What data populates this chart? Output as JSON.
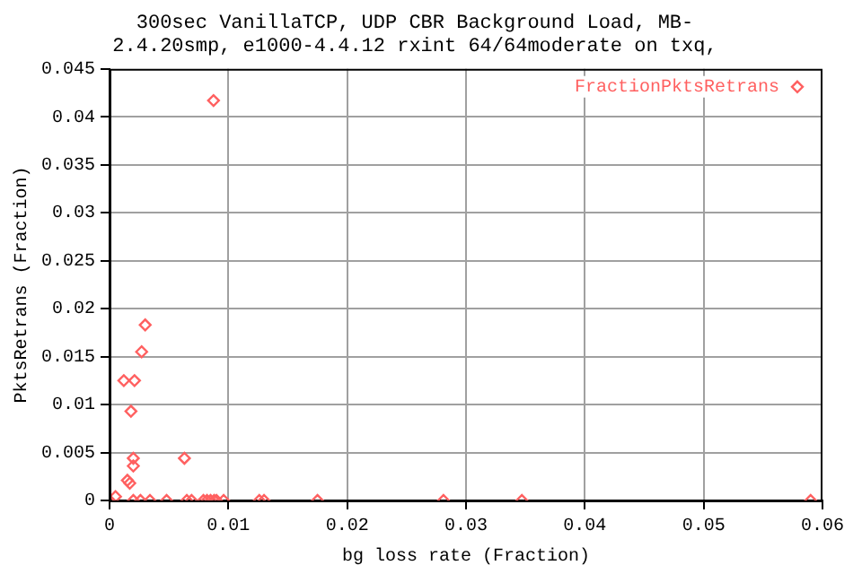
{
  "chart_data": {
    "type": "scatter",
    "title": "300sec VanillaTCP, UDP CBR Background Load, MB-\n2.4.20smp, e1000-4.4.12 rxint 64/64moderate on txq,",
    "xlabel": "bg loss rate (Fraction)",
    "ylabel": "PktsRetrans (Fraction)",
    "xlim": [
      0,
      0.06
    ],
    "xticks": [
      0,
      0.01,
      0.02,
      0.03,
      0.04,
      0.05,
      0.06
    ],
    "ylim": [
      0,
      0.045
    ],
    "yticks": [
      0,
      0.005,
      0.01,
      0.015,
      0.02,
      0.025,
      0.03,
      0.035,
      0.04,
      0.045
    ],
    "grid": true,
    "legend": "top right",
    "marker": "diamond",
    "series": [
      {
        "name": "FractionPktsRetrans",
        "color": "#ff6060",
        "x": [
          0.00875,
          0.003,
          0.0027,
          0.0012,
          0.0021,
          0.0018,
          0.002,
          0.002,
          0.0015,
          0.0017,
          0.0063,
          0.0005,
          0,
          0.002,
          0.0026,
          0.0034,
          0.0048,
          0.0065,
          0.0069,
          0.0079,
          0.0082,
          0.0085,
          0.0088,
          0.009,
          0.0096,
          0.0126,
          0.013,
          0.0175,
          0.0281,
          0.0347,
          0.059
        ],
        "values": [
          0.0417,
          0.0183,
          0.0155,
          0.0125,
          0.0125,
          0.0093,
          0.0044,
          0.0036,
          0.0021,
          0.0018,
          0.0044,
          0.0004,
          0,
          0,
          0,
          0,
          0,
          0,
          0,
          0,
          0,
          0,
          0,
          0,
          0,
          0,
          0,
          0,
          0,
          0,
          0
        ]
      }
    ]
  }
}
